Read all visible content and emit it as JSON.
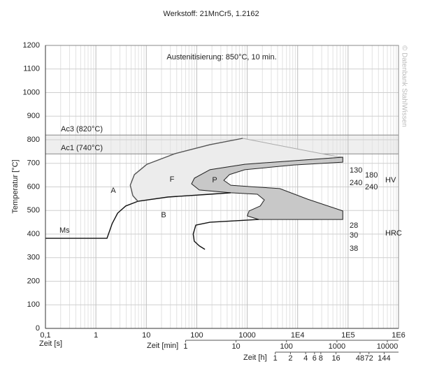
{
  "chart_data": {
    "type": "line",
    "title": "Werkstoff: 21MnCr5, 1.2162",
    "ylabel": "Temperatur [°C]",
    "xlabel": "Zeit [s]",
    "x2label": "Zeit [min]",
    "x3label": "Zeit [h]",
    "xscale": "log",
    "grid": true,
    "xlim": [
      0.1,
      1000000
    ],
    "ylim": [
      0,
      1200
    ],
    "yticks": [
      0,
      100,
      200,
      300,
      400,
      500,
      600,
      700,
      800,
      900,
      1000,
      1100,
      1200
    ],
    "xticks": [
      {
        "value": 0.1,
        "label": "0,1"
      },
      1,
      10,
      100,
      1000,
      {
        "value": 10000,
        "label": "1E4"
      },
      {
        "value": 100000,
        "label": "1E5"
      },
      {
        "value": 1000000,
        "label": "1E6"
      }
    ],
    "x2ticks": [
      {
        "value": 60,
        "label": "1"
      },
      {
        "value": 600,
        "label": "10"
      },
      {
        "value": 6000,
        "label": "100"
      },
      {
        "value": 60000,
        "label": "1000"
      },
      {
        "value": 600000,
        "label": "10000"
      }
    ],
    "x3ticks": [
      {
        "value": 3600,
        "label": "1"
      },
      {
        "value": 7200,
        "label": "2"
      },
      {
        "value": 14400,
        "label": "4"
      },
      {
        "value": 21600,
        "label": "6"
      },
      {
        "value": 28800,
        "label": "8"
      },
      {
        "value": 57600,
        "label": "16"
      },
      {
        "value": 172800,
        "label": "48"
      },
      {
        "value": 259200,
        "label": "72"
      },
      {
        "value": 518400,
        "label": "144"
      }
    ],
    "transformation_lines": [
      {
        "label": "Ac3 (820°C)",
        "value": 820
      },
      {
        "label": "Ac1 (740°C)",
        "value": 740
      }
    ],
    "band_color": "#efefef",
    "series": [
      {
        "color": "#aaaaaa",
        "fill": "#ececec",
        "x": [
          813,
          182,
          37,
          10.3,
          5.8,
          4.8,
          5.4,
          6.8,
          26.7,
          182,
          473,
          112,
          79,
          90,
          182,
          898,
          78500,
          41400
        ],
        "values": [
          806,
          779,
          741,
          696,
          652,
          607,
          563,
          539,
          557,
          569,
          575,
          587,
          613,
          637,
          673,
          696,
          726,
          735
        ]
      },
      {
        "color": "#222222",
        "fill": "#c8c8c8",
        "x": [
          78500,
          898,
          182,
          90,
          79,
          112,
          473,
          1590,
          2190,
          1810,
          1090,
          1000,
          1700,
          78500,
          78500,
          15900,
          4420,
          1230,
          473,
          344,
          445,
          898,
          8400,
          78500
        ],
        "values": [
          726,
          696,
          673,
          637,
          613,
          587,
          575,
          569,
          545,
          519,
          498,
          477,
          462,
          462,
          498,
          548,
          593,
          601,
          607,
          628,
          652,
          673,
          693,
          705
        ]
      },
      {
        "color": "#111111",
        "x": [
          0.1,
          1.66,
          2.1,
          2.7,
          3.9,
          6.8,
          26.7,
          182,
          473
        ],
        "values": [
          382,
          382,
          444,
          489,
          519,
          539,
          557,
          569,
          575
        ]
      },
      {
        "color": "#555555",
        "x": [
          813,
          182,
          37,
          10.3,
          5.8,
          4.8,
          5.4,
          6.8
        ],
        "values": [
          806,
          779,
          741,
          696,
          652,
          607,
          563,
          539
        ]
      },
      {
        "color": "#111111",
        "x": [
          1700,
          182,
          96,
          85,
          89,
          112,
          145
        ],
        "values": [
          462,
          450,
          438,
          400,
          370,
          350,
          335
        ]
      }
    ],
    "annotations": [
      "Austenitisierung: 850°C, 10 min.",
      "A",
      "F",
      "P",
      "B",
      "Ms",
      "130",
      "180",
      "240",
      "240",
      "HV",
      "28",
      "30",
      "38",
      "HRC"
    ],
    "watermark": "© Datenbank StahlWissen"
  }
}
